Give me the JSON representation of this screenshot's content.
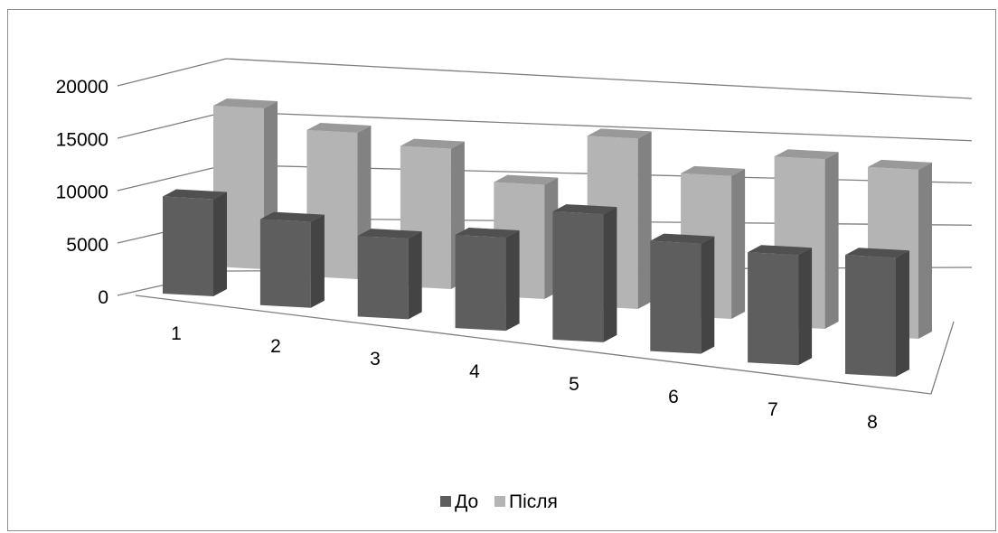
{
  "chart_data": {
    "type": "bar",
    "subtype": "3d-clustered-column",
    "categories": [
      "1",
      "2",
      "3",
      "4",
      "5",
      "6",
      "7",
      "8"
    ],
    "series": [
      {
        "name": "До",
        "color": "#5e5e5e",
        "values": [
          9600,
          8400,
          7800,
          8900,
          12100,
          10300,
          10200,
          10900
        ]
      },
      {
        "name": "Після",
        "color": "#b4b4b4",
        "values": [
          15000,
          13500,
          12800,
          10300,
          15200,
          12600,
          14800,
          14600
        ]
      }
    ],
    "y_ticks": [
      "0",
      "5000",
      "10000",
      "15000",
      "20000"
    ],
    "ylim": [
      0,
      20000
    ],
    "grid": true,
    "legend_position": "bottom"
  }
}
